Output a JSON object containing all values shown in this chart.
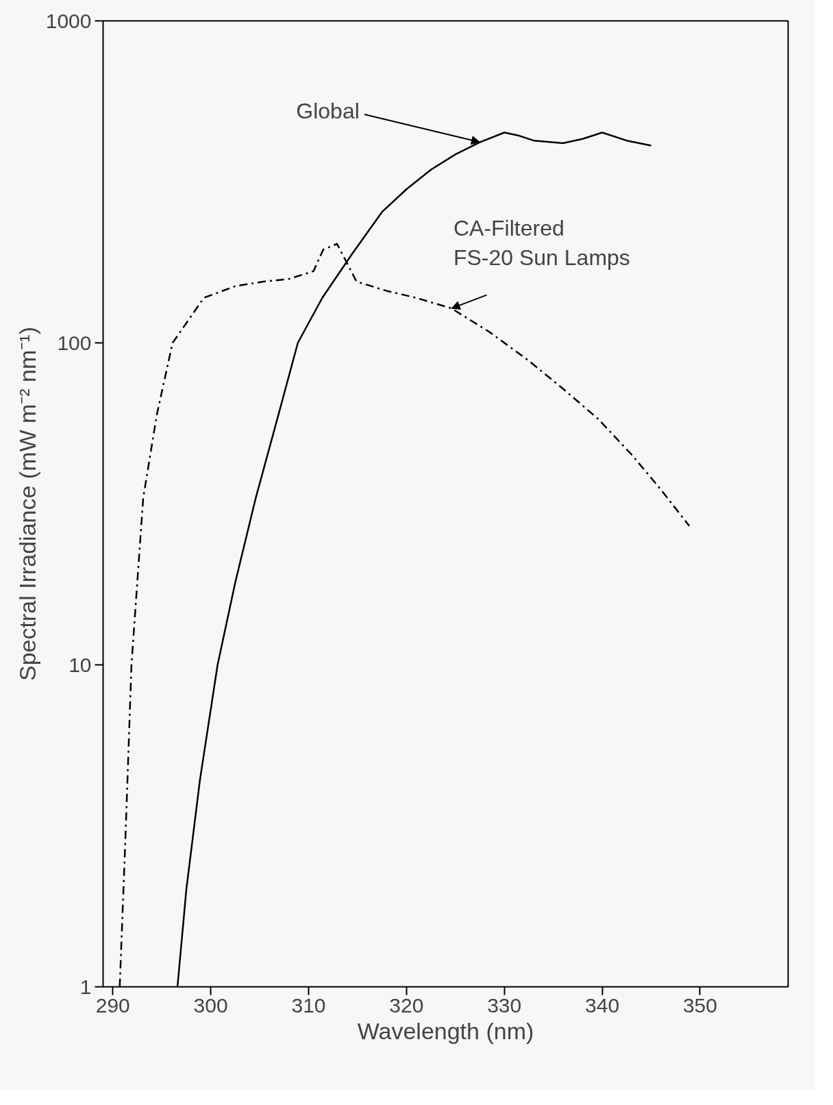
{
  "chart_data": {
    "type": "line",
    "xlabel": "Wavelength (nm)",
    "ylabel": "Spectral Irradiance (mW m⁻² nm⁻¹)",
    "log": "y",
    "grid": false,
    "marker": "none",
    "xlim": [
      289,
      359
    ],
    "ylim": [
      1,
      1000
    ],
    "xticks": [
      290,
      300,
      310,
      320,
      330,
      340,
      350
    ],
    "yticks": [
      1,
      10,
      100,
      1000
    ],
    "series": [
      {
        "color": "#000000",
        "line_style": "solid",
        "x": [
          296.6,
          297.5,
          298.9,
          300.7,
          302.5,
          304.6,
          306.8,
          308.9,
          311.4,
          314.5,
          317.5,
          320,
          322.5,
          325,
          327.5,
          330,
          331.5,
          333,
          336,
          338,
          340,
          342.5,
          345
        ],
        "values": [
          1,
          2,
          4.4,
          10,
          18,
          33,
          58,
          100,
          138,
          190,
          255,
          300,
          345,
          385,
          420,
          450,
          440,
          425,
          417,
          430,
          450,
          425,
          410
        ]
      },
      {
        "color": "#000000",
        "line_style": "dashdot",
        "x": [
          290.7,
          291.3,
          291.9,
          293.1,
          294.5,
          296.1,
          299.3,
          302.5,
          305.4,
          308,
          310.5,
          311.5,
          312.9,
          313.8,
          314.9,
          318,
          321,
          324.6,
          328.5,
          332.5,
          336,
          339.6,
          343,
          346,
          348.9
        ],
        "values": [
          1,
          3,
          10,
          33,
          60,
          100,
          138,
          150,
          155,
          158,
          167,
          195,
          203,
          180,
          155,
          145,
          138,
          128,
          108,
          88,
          72,
          58,
          45,
          35,
          27
        ]
      }
    ],
    "annotations": [
      {
        "text": "Global",
        "x": 327.5,
        "y": 420
      },
      {
        "text": "CA-Filtered\nFS-20 Sun Lamps",
        "x": 324.6,
        "y": 128
      }
    ]
  }
}
